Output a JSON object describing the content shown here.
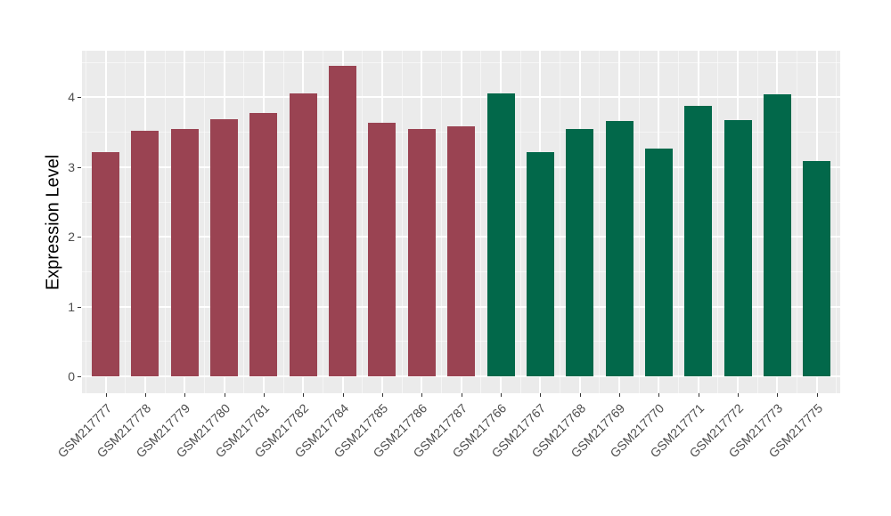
{
  "chart_data": {
    "type": "bar",
    "title": "",
    "xlabel": "",
    "ylabel": "Expression Level",
    "yticks": [
      0,
      1,
      2,
      3,
      4
    ],
    "ylim": [
      0,
      4.67
    ],
    "grid": "on",
    "legend": "none",
    "panel_background": "#EBEBEB",
    "gridline_color": "#FFFFFF",
    "tick_label_color": "#4D4D4D",
    "group_colors": {
      "group1": "#9A4352",
      "group2": "#02684A"
    },
    "bars": [
      {
        "label": "GSM217777",
        "value": 3.22,
        "group": "group1"
      },
      {
        "label": "GSM217778",
        "value": 3.52,
        "group": "group1"
      },
      {
        "label": "GSM217779",
        "value": 3.55,
        "group": "group1"
      },
      {
        "label": "GSM217780",
        "value": 3.69,
        "group": "group1"
      },
      {
        "label": "GSM217781",
        "value": 3.77,
        "group": "group1"
      },
      {
        "label": "GSM217782",
        "value": 4.06,
        "group": "group1"
      },
      {
        "label": "GSM217784",
        "value": 4.45,
        "group": "group1"
      },
      {
        "label": "GSM217785",
        "value": 3.64,
        "group": "group1"
      },
      {
        "label": "GSM217786",
        "value": 3.54,
        "group": "group1"
      },
      {
        "label": "GSM217787",
        "value": 3.59,
        "group": "group1"
      },
      {
        "label": "GSM217766",
        "value": 4.05,
        "group": "group2"
      },
      {
        "label": "GSM217767",
        "value": 3.21,
        "group": "group2"
      },
      {
        "label": "GSM217768",
        "value": 3.54,
        "group": "group2"
      },
      {
        "label": "GSM217769",
        "value": 3.66,
        "group": "group2"
      },
      {
        "label": "GSM217770",
        "value": 3.27,
        "group": "group2"
      },
      {
        "label": "GSM217771",
        "value": 3.88,
        "group": "group2"
      },
      {
        "label": "GSM217772",
        "value": 3.67,
        "group": "group2"
      },
      {
        "label": "GSM217773",
        "value": 4.04,
        "group": "group2"
      },
      {
        "label": "GSM217775",
        "value": 3.09,
        "group": "group2"
      }
    ]
  }
}
